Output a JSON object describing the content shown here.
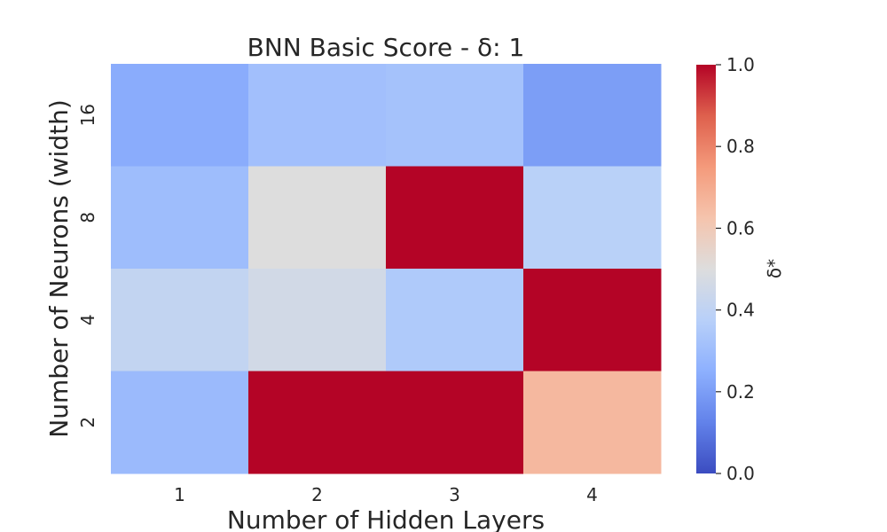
{
  "chart_data": {
    "type": "heatmap",
    "title": "BNN Basic Score - δ: 1",
    "xlabel": "Number of Hidden Layers",
    "ylabel": "Number of Neurons (width)",
    "x_categories": [
      "1",
      "2",
      "3",
      "4"
    ],
    "y_categories": [
      "16",
      "8",
      "4",
      "2"
    ],
    "values": [
      [
        0.24,
        0.31,
        0.32,
        0.2
      ],
      [
        0.3,
        0.5,
        1.0,
        0.38
      ],
      [
        0.41,
        0.46,
        0.35,
        1.0
      ],
      [
        0.29,
        1.0,
        1.0,
        0.66
      ]
    ],
    "colormap": "coolwarm",
    "colorbar": {
      "label": "δ*",
      "vmin": 0.0,
      "vmax": 1.0,
      "ticks": [
        "0.0",
        "0.2",
        "0.4",
        "0.6",
        "0.8",
        "1.0"
      ]
    }
  }
}
